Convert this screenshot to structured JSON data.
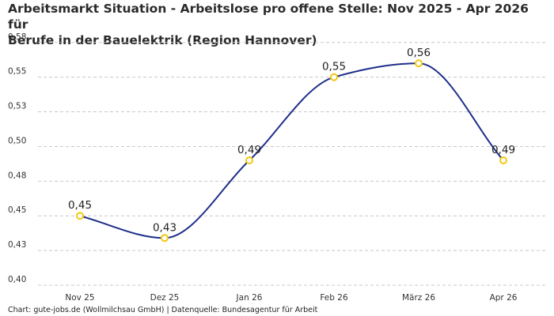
{
  "title_lines": [
    "Arbeitsmarkt Situation - Arbeitslose pro offene Stelle: Nov 2025 - Apr 2026 für",
    "Berufe in der Bauelektrik (Region Hannover)"
  ],
  "footer": "Chart: gute-jobs.de (Wollmilchsau GmbH) | Datenquelle: Bundesagentur für Arbeit",
  "chart_data": {
    "type": "line",
    "title": "Arbeitsmarkt Situation - Arbeitslose pro offene Stelle: Nov 2025 - Apr 2026 für Berufe in der Bauelektrik (Region Hannover)",
    "categories": [
      "Nov 25",
      "Dez 25",
      "Jan 26",
      "Feb 26",
      "März 26",
      "Apr 26"
    ],
    "series": [
      {
        "values": [
          0.45,
          0.434,
          0.49,
          0.55,
          0.56,
          0.49
        ],
        "labels": [
          "0,45",
          "0,43",
          "0,49",
          "0,55",
          "0,56",
          "0,49"
        ]
      }
    ],
    "ylim": [
      0.4,
      0.58
    ],
    "yticks": [
      0.4,
      0.425,
      0.45,
      0.475,
      0.5,
      0.525,
      0.55,
      0.575
    ],
    "ytick_labels": [
      "0,40",
      "0,43",
      "0,45",
      "0,48",
      "0,50",
      "0,53",
      "0,55",
      "0,58"
    ],
    "grid": true,
    "legend": "none",
    "line_color": "#1f2f8a",
    "marker_color": "#f2c811"
  }
}
